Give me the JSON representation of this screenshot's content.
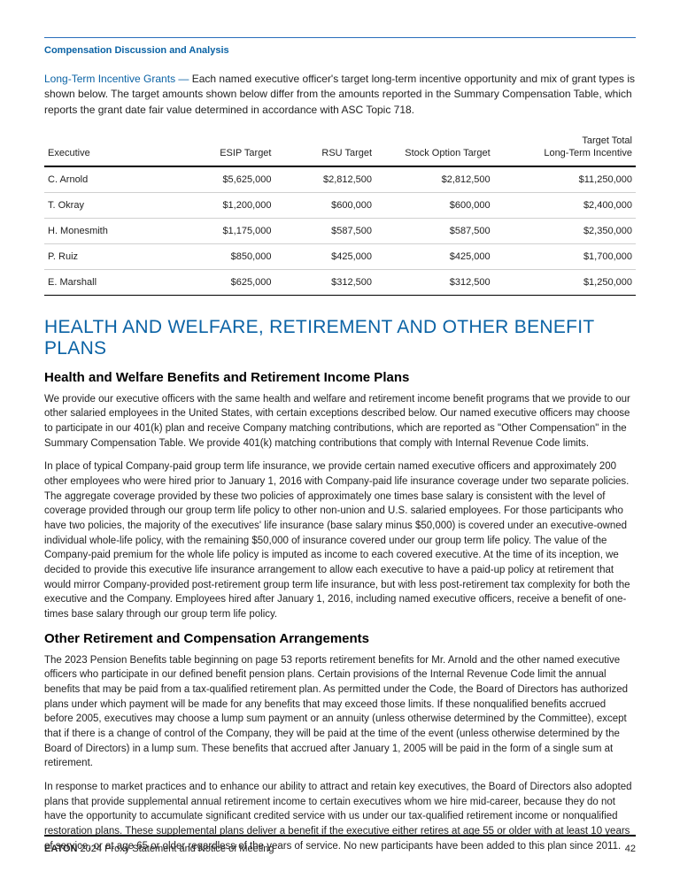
{
  "header": {
    "section_title": "Compensation Discussion and Analysis"
  },
  "lead": {
    "run_in": "Long-Term Incentive Grants — ",
    "text": "Each named executive officer's target long-term incentive opportunity and mix of grant types is shown below. The target amounts shown below differ from the amounts reported in the Summary Compensation Table, which reports the grant date fair value determined in accordance with ASC Topic 718."
  },
  "table": {
    "columns": [
      "Executive",
      "ESIP Target",
      "RSU Target",
      "Stock Option Target",
      "Target Total\nLong-Term Incentive"
    ],
    "rows": [
      [
        "C. Arnold",
        "$5,625,000",
        "$2,812,500",
        "$2,812,500",
        "$11,250,000"
      ],
      [
        "T. Okray",
        "$1,200,000",
        "$600,000",
        "$600,000",
        "$2,400,000"
      ],
      [
        "H. Monesmith",
        "$1,175,000",
        "$587,500",
        "$587,500",
        "$2,350,000"
      ],
      [
        "P. Ruiz",
        "$850,000",
        "$425,000",
        "$425,000",
        "$1,700,000"
      ],
      [
        "E. Marshall",
        "$625,000",
        "$312,500",
        "$312,500",
        "$1,250,000"
      ]
    ]
  },
  "h1": "HEALTH AND WELFARE, RETIREMENT AND OTHER BENEFIT PLANS",
  "h2a": "Health and Welfare Benefits and Retirement Income Plans",
  "p1": "We provide our executive officers with the same health and welfare and retirement income benefit programs that we provide to our other salaried employees in the United States, with certain exceptions described below. Our named executive officers may choose to participate in our 401(k) plan and receive Company matching contributions, which are reported as \"Other Compensation\" in the Summary Compensation Table. We provide 401(k) matching contributions that comply with Internal Revenue Code limits.",
  "p2": "In place of typical Company-paid group term life insurance, we provide certain named executive officers and approximately 200 other employees who were hired prior to January 1, 2016 with Company-paid life insurance coverage under two separate policies. The aggregate coverage provided by these two policies of approximately one times base salary is consistent with the level of coverage provided through our group term life policy to other non-union and U.S. salaried employees. For those participants who have two policies, the majority of the executives' life insurance (base salary minus $50,000) is covered under an executive-owned individual whole-life policy, with the remaining $50,000 of insurance covered under our group term life policy. The value of the Company-paid premium for the whole life policy is imputed as income to each covered executive. At the time of its inception, we decided to provide this executive life insurance arrangement to allow each executive to have a paid-up policy at retirement that would mirror Company-provided post-retirement group term life insurance, but with less post-retirement tax complexity for both the executive and the Company. Employees hired after January 1, 2016, including named executive officers, receive a benefit of one-times base salary through our group term life policy.",
  "h2b": "Other Retirement and Compensation Arrangements",
  "p3": "The 2023 Pension Benefits table beginning on page 53 reports retirement benefits for Mr. Arnold and the other named executive officers who participate in our defined benefit pension plans. Certain provisions of the Internal Revenue Code limit the annual benefits that may be paid from a tax-qualified retirement plan. As permitted under the Code, the Board of Directors has authorized plans under which payment will be made for any benefits that may exceed those limits. If these nonqualified benefits accrued before 2005, executives may choose a lump sum payment or an annuity (unless otherwise determined by the Committee), except that if there is a change of control of the Company, they will be paid at the time of the event (unless otherwise determined by the Board of Directors) in a lump sum. These benefits that accrued after January 1, 2005 will be paid in the form of a single sum at retirement.",
  "p4": "In response to market practices and to enhance our ability to attract and retain key executives, the Board of Directors also adopted plans that provide supplemental annual retirement income to certain executives whom we hire mid-career, because they do not have the opportunity to accumulate significant credited service with us under our tax-qualified retirement income or nonqualified restoration plans. These supplemental plans deliver a benefit if the executive either retires at age 55 or older with at least 10 years of service, or at age 65 or older regardless of the years of service. No new participants have been added to this plan since 2011.",
  "footer": {
    "brand": "EATON",
    "rest": "  2024 Proxy Statement and Notice of Meeting",
    "page": "42"
  }
}
